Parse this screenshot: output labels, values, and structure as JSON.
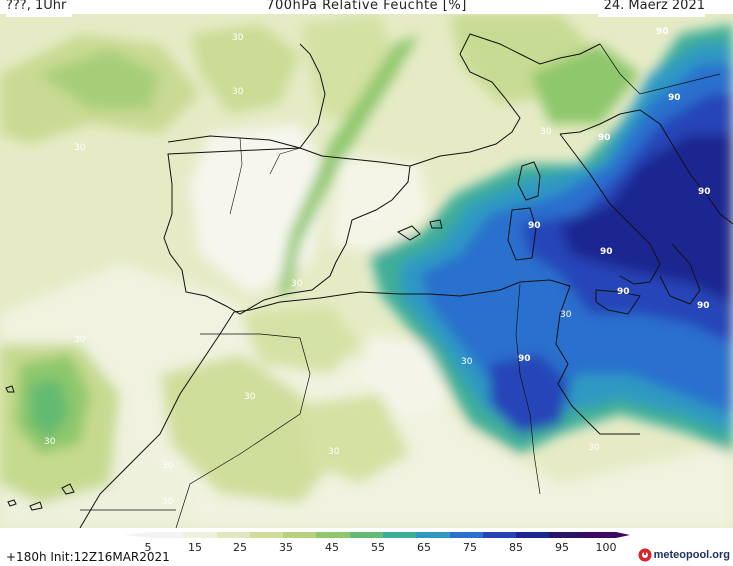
{
  "header": {
    "left": "???, 1Uhr",
    "title": "700hPa Relative Feuchte [%]",
    "date": "24. Maerz 2021"
  },
  "map": {
    "contour_labels": [
      "30",
      "30",
      "30",
      "30",
      "30",
      "30",
      "30",
      "30",
      "30",
      "30",
      "30",
      "30",
      "30",
      "30",
      "30",
      "90",
      "90",
      "90",
      "90",
      "90",
      "90",
      "90",
      "90",
      "90"
    ]
  },
  "legend": {
    "ticks": [
      "5",
      "15",
      "25",
      "35",
      "45",
      "55",
      "65",
      "75",
      "85",
      "95",
      "100"
    ],
    "colors": [
      "#f4f4f4",
      "#eef1de",
      "#e1e8bd",
      "#cfdd98",
      "#b6d27c",
      "#8ec76c",
      "#63ba72",
      "#3fae97",
      "#2f99c2",
      "#2c6fce",
      "#2644b8",
      "#1b2891",
      "#2a1468",
      "#3c0860"
    ],
    "init": "+180h  Init:12Z16MAR2021",
    "brand": "meteopool.org"
  }
}
